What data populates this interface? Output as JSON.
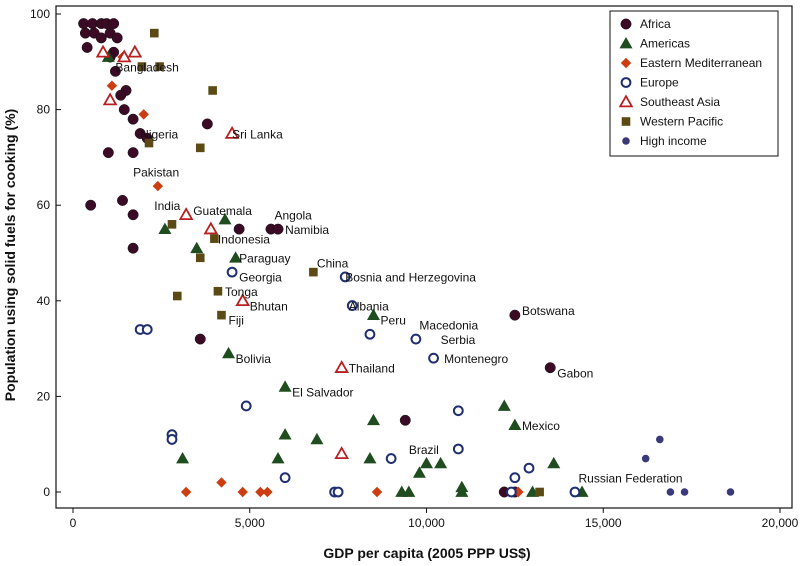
{
  "chart_data": {
    "type": "scatter",
    "xlabel": "GDP per capita (2005 PPP US$)",
    "ylabel": "Population using solid fuels for cooking (%)",
    "xlim": [
      0,
      20000
    ],
    "ylim": [
      0,
      100
    ],
    "xticks": [
      0,
      5000,
      10000,
      15000,
      20000
    ],
    "xtick_labels": [
      "0",
      "5,000",
      "10,000",
      "15,000",
      "20,000"
    ],
    "yticks": [
      0,
      20,
      40,
      60,
      80,
      100
    ],
    "ytick_labels": [
      "0",
      "20",
      "40",
      "60",
      "80",
      "100"
    ],
    "legend_position": "top-right",
    "colors": {
      "africa": "#3b0a24",
      "americas": "#1f4d1f",
      "eastern_med": "#cc3d12",
      "europe": "#1f2f70",
      "southeast_asia": "#b82020",
      "western_pacific": "#5c4a14",
      "high_income": "#3a3a7a"
    },
    "series": [
      {
        "name": "Africa",
        "key": "africa",
        "marker": "circle-filled",
        "points": [
          [
            300,
            98
          ],
          [
            550,
            98
          ],
          [
            800,
            98
          ],
          [
            950,
            98
          ],
          [
            1150,
            98
          ],
          [
            350,
            96
          ],
          [
            600,
            96
          ],
          [
            800,
            95
          ],
          [
            1050,
            96
          ],
          [
            1250,
            95
          ],
          [
            400,
            93
          ],
          [
            1150,
            92
          ],
          [
            1050,
            91
          ],
          [
            1200,
            88
          ],
          [
            1500,
            84
          ],
          [
            1350,
            83
          ],
          [
            1450,
            80
          ],
          [
            1700,
            78
          ],
          [
            3800,
            77
          ],
          [
            1900,
            75
          ],
          [
            2100,
            74
          ],
          [
            1000,
            71
          ],
          [
            1700,
            71
          ],
          [
            500,
            60
          ],
          [
            1400,
            61
          ],
          [
            1700,
            58
          ],
          [
            4700,
            55
          ],
          [
            5600,
            55
          ],
          [
            5800,
            55
          ],
          [
            1700,
            51
          ],
          [
            3600,
            32
          ],
          [
            12500,
            37
          ],
          [
            13500,
            26
          ],
          [
            9400,
            15
          ],
          [
            12200,
            0
          ],
          [
            12500,
            0
          ]
        ]
      },
      {
        "name": "Americas",
        "key": "americas",
        "marker": "triangle-filled",
        "points": [
          [
            1000,
            91
          ],
          [
            4300,
            57
          ],
          [
            2600,
            55
          ],
          [
            3500,
            51
          ],
          [
            4600,
            49
          ],
          [
            4400,
            29
          ],
          [
            6000,
            22
          ],
          [
            6000,
            12
          ],
          [
            6900,
            11
          ],
          [
            5800,
            7
          ],
          [
            8500,
            37
          ],
          [
            8500,
            15
          ],
          [
            8400,
            7
          ],
          [
            3100,
            7
          ],
          [
            9800,
            4
          ],
          [
            10000,
            6
          ],
          [
            10400,
            6
          ],
          [
            9300,
            0
          ],
          [
            9500,
            0
          ],
          [
            11000,
            0
          ],
          [
            11000,
            1
          ],
          [
            12200,
            18
          ],
          [
            12500,
            14
          ],
          [
            13600,
            6
          ],
          [
            13000,
            0
          ],
          [
            14400,
            0
          ]
        ]
      },
      {
        "name": "Eastern Mediterranean",
        "key": "eastern_med",
        "marker": "diamond-filled",
        "points": [
          [
            1400,
            91
          ],
          [
            1100,
            85
          ],
          [
            2000,
            79
          ],
          [
            2400,
            64
          ],
          [
            3200,
            0
          ],
          [
            4200,
            2
          ],
          [
            4800,
            0
          ],
          [
            5300,
            0
          ],
          [
            5500,
            0
          ],
          [
            8600,
            0
          ],
          [
            12600,
            0
          ]
        ]
      },
      {
        "name": "Europe",
        "key": "europe",
        "marker": "circle-open",
        "points": [
          [
            4500,
            46
          ],
          [
            7700,
            45
          ],
          [
            7900,
            39
          ],
          [
            1900,
            34
          ],
          [
            2100,
            34
          ],
          [
            8400,
            33
          ],
          [
            9700,
            32
          ],
          [
            10200,
            28
          ],
          [
            4900,
            18
          ],
          [
            2800,
            12
          ],
          [
            2800,
            11
          ],
          [
            6000,
            3
          ],
          [
            9000,
            7
          ],
          [
            10900,
            17
          ],
          [
            10900,
            9
          ],
          [
            12500,
            3
          ],
          [
            12900,
            5
          ],
          [
            7400,
            0
          ],
          [
            7500,
            0
          ],
          [
            12400,
            0
          ],
          [
            14200,
            0
          ]
        ]
      },
      {
        "name": "Southeast Asia",
        "key": "southeast_asia",
        "marker": "triangle-open",
        "points": [
          [
            850,
            92
          ],
          [
            1450,
            91
          ],
          [
            1750,
            92
          ],
          [
            1050,
            82
          ],
          [
            4500,
            75
          ],
          [
            3200,
            58
          ],
          [
            3900,
            55
          ],
          [
            4800,
            40
          ],
          [
            7600,
            26
          ],
          [
            7600,
            8
          ]
        ]
      },
      {
        "name": "Western Pacific",
        "key": "western_pacific",
        "marker": "square-filled",
        "points": [
          [
            2300,
            96
          ],
          [
            1950,
            89
          ],
          [
            2450,
            89
          ],
          [
            3950,
            84
          ],
          [
            2150,
            73
          ],
          [
            3600,
            72
          ],
          [
            2800,
            56
          ],
          [
            4000,
            53
          ],
          [
            3600,
            49
          ],
          [
            6800,
            46
          ],
          [
            4100,
            42
          ],
          [
            2950,
            41
          ],
          [
            4200,
            37
          ],
          [
            13200,
            0
          ]
        ]
      },
      {
        "name": "High income",
        "key": "high_income",
        "marker": "circle-small",
        "points": [
          [
            16600,
            11
          ],
          [
            16200,
            7
          ],
          [
            16900,
            0
          ],
          [
            17300,
            0
          ],
          [
            18600,
            0
          ]
        ]
      }
    ],
    "annotations": [
      {
        "text": "Bangladesh",
        "x": 1200,
        "y": 88
      },
      {
        "text": "Nigeria",
        "x": 1900,
        "y": 74
      },
      {
        "text": "Sri Lanka",
        "x": 4500,
        "y": 74
      },
      {
        "text": "Pakistan",
        "x": 1700,
        "y": 66
      },
      {
        "text": "India",
        "x": 2300,
        "y": 59
      },
      {
        "text": "Guatemala",
        "x": 3400,
        "y": 58
      },
      {
        "text": "Angola",
        "x": 5700,
        "y": 57
      },
      {
        "text": "Namibia",
        "x": 6000,
        "y": 54
      },
      {
        "text": "Indonesia",
        "x": 4100,
        "y": 52
      },
      {
        "text": "Paraguay",
        "x": 4700,
        "y": 48
      },
      {
        "text": "China",
        "x": 6900,
        "y": 47
      },
      {
        "text": "Georgia",
        "x": 4700,
        "y": 44
      },
      {
        "text": "Bosnia and Herzegovina",
        "x": 7700,
        "y": 44
      },
      {
        "text": "Tonga",
        "x": 4300,
        "y": 41
      },
      {
        "text": "Bhutan",
        "x": 5000,
        "y": 38
      },
      {
        "text": "Albania",
        "x": 7800,
        "y": 38
      },
      {
        "text": "Botswana",
        "x": 12700,
        "y": 37
      },
      {
        "text": "Fiji",
        "x": 4400,
        "y": 35
      },
      {
        "text": "Peru",
        "x": 8700,
        "y": 35
      },
      {
        "text": "Macedonia",
        "x": 9800,
        "y": 34
      },
      {
        "text": "Serbia",
        "x": 10400,
        "y": 31
      },
      {
        "text": "Bolivia",
        "x": 4600,
        "y": 27
      },
      {
        "text": "Montenegro",
        "x": 10500,
        "y": 27
      },
      {
        "text": "Thailand",
        "x": 7800,
        "y": 25
      },
      {
        "text": "Gabon",
        "x": 13700,
        "y": 24
      },
      {
        "text": "El Salvador",
        "x": 6200,
        "y": 20
      },
      {
        "text": "Mexico",
        "x": 12700,
        "y": 13
      },
      {
        "text": "Brazil",
        "x": 9500,
        "y": 8
      },
      {
        "text": "Russian Federation",
        "x": 14300,
        "y": 2
      }
    ]
  }
}
